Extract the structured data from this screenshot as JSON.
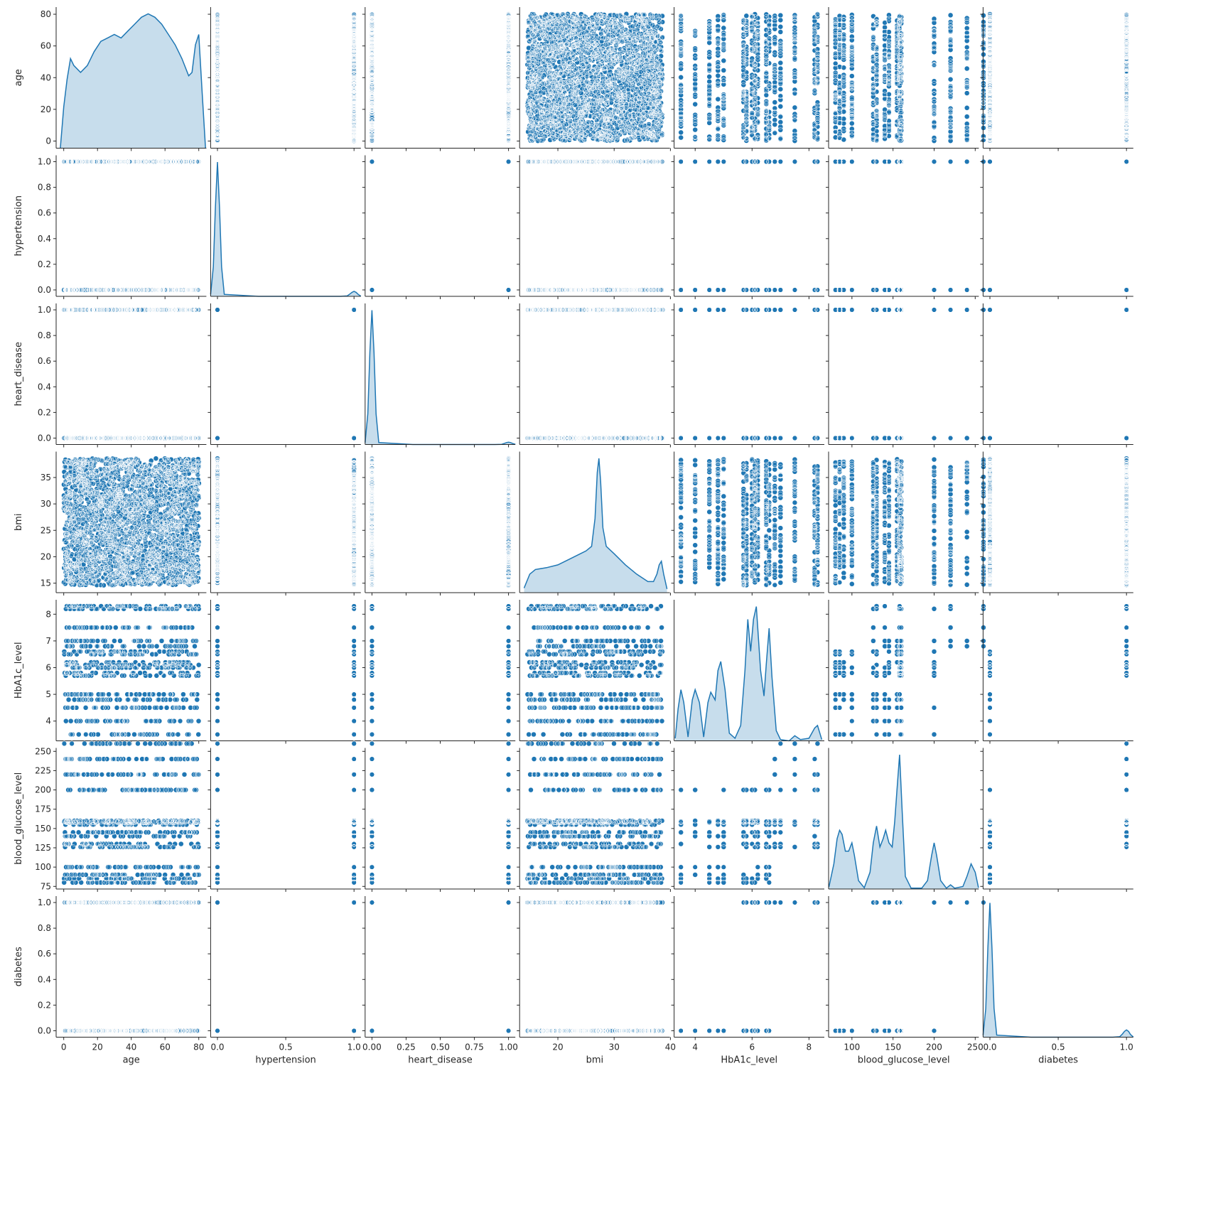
{
  "chart_data": {
    "type": "scatter",
    "subtype": "pairplot",
    "variables": [
      "age",
      "hypertension",
      "heart_disease",
      "bmi",
      "HbA1c_level",
      "blood_glucose_level",
      "diabetes"
    ],
    "axes": {
      "age": {
        "lim": [
          -4.5,
          84.5
        ],
        "ticks": [
          0,
          20,
          40,
          60,
          80
        ],
        "ticklabels": [
          "0",
          "20",
          "40",
          "60",
          "80"
        ]
      },
      "hypertension": {
        "lim": [
          -0.05,
          1.05
        ],
        "ticks": [
          0,
          0.2,
          0.4,
          0.6,
          0.8,
          1.0
        ],
        "ticklabels": [
          "0.0",
          "0.2",
          "0.4",
          "0.6",
          "0.8",
          "1.0"
        ]
      },
      "heart_disease": {
        "lim": [
          -0.05,
          1.05
        ],
        "ticks": [
          0,
          0.2,
          0.4,
          0.6,
          0.8,
          1.0
        ],
        "ticklabels": [
          "0.0",
          "0.2",
          "0.4",
          "0.6",
          "0.8",
          "1.0"
        ]
      },
      "bmi": {
        "lim": [
          13.2,
          39.9
        ],
        "ticks": [
          15,
          20,
          25,
          30,
          35
        ],
        "ticklabels": [
          "15",
          "20",
          "25",
          "30",
          "35"
        ]
      },
      "HbA1c_level": {
        "lim": [
          3.26,
          8.54
        ],
        "ticks": [
          4,
          5,
          6,
          7,
          8
        ],
        "ticklabels": [
          "4",
          "5",
          "6",
          "7",
          "8"
        ]
      },
      "blood_glucose_level": {
        "lim": [
          71.6,
          254.4
        ],
        "ticks": [
          75,
          100,
          125,
          150,
          175,
          200,
          225,
          250
        ],
        "ticklabels": [
          "75",
          "100",
          "125",
          "150",
          "175",
          "200",
          "225",
          "250"
        ]
      },
      "diabetes": {
        "lim": [
          -0.05,
          1.05
        ],
        "ticks": [
          0,
          0.2,
          0.4,
          0.6,
          0.8,
          1.0
        ],
        "ticklabels": [
          "0.0",
          "0.2",
          "0.4",
          "0.6",
          "0.8",
          "1.0"
        ]
      }
    },
    "x_axes": {
      "hypertension": {
        "ticks": [
          0,
          0.5,
          1.0
        ],
        "ticklabels": [
          "0.0",
          "0.5",
          "1.0"
        ]
      },
      "heart_disease": {
        "ticks": [
          0,
          0.25,
          0.5,
          0.75,
          1.0
        ],
        "ticklabels": [
          "0.00",
          "0.25",
          "0.50",
          "0.75",
          "1.00"
        ]
      },
      "bmi": {
        "ticks": [
          20,
          30,
          40
        ],
        "ticklabels": [
          "20",
          "30",
          "40"
        ]
      },
      "HbA1c_level": {
        "ticks": [
          4,
          6,
          8
        ],
        "ticklabels": [
          "4",
          "6",
          "8"
        ]
      },
      "blood_glucose_level": {
        "ticks": [
          100,
          150,
          200,
          250
        ],
        "ticklabels": [
          "100",
          "150",
          "200",
          "250"
        ]
      },
      "diabetes": {
        "ticks": [
          0,
          0.5,
          1.0
        ],
        "ticklabels": [
          "0.0",
          "0.5",
          "1.0"
        ]
      }
    },
    "binary_vars": [
      "hypertension",
      "heart_disease",
      "diabetes"
    ],
    "observed_levels": {
      "hypertension": [
        0,
        1
      ],
      "heart_disease": [
        0,
        1
      ],
      "diabetes": [
        0,
        1
      ],
      "HbA1c_level": [
        3.5,
        4.0,
        4.5,
        4.8,
        5.0,
        5.7,
        5.8,
        6.0,
        6.1,
        6.2,
        6.5,
        6.6,
        6.8,
        7.0,
        7.5,
        8.2,
        8.3
      ],
      "HbA1c_level_diabetic": [
        5.7,
        5.8,
        6.0,
        6.1,
        6.2,
        6.5,
        6.6,
        6.8,
        7.0,
        7.5,
        8.2,
        8.3
      ],
      "HbA1c_level_nondiabetic": [
        3.5,
        4.0,
        4.5,
        4.8,
        5.0,
        5.7,
        5.8,
        6.0,
        6.1,
        6.2,
        6.5,
        6.6
      ],
      "blood_glucose_level": [
        80,
        85,
        90,
        100,
        126,
        130,
        140,
        145,
        155,
        158,
        159,
        160,
        200,
        220,
        240,
        260
      ],
      "blood_glucose_level_diabetic": [
        126,
        130,
        140,
        145,
        155,
        158,
        159,
        160,
        200,
        220,
        240,
        260
      ],
      "blood_glucose_level_nondiabetic": [
        80,
        85,
        90,
        100,
        126,
        130,
        140,
        145,
        155,
        158,
        159,
        160,
        200
      ]
    },
    "diagonal_kde": {
      "age": {
        "x": [
          -2,
          0,
          2,
          4,
          6,
          10,
          14,
          18,
          22,
          26,
          30,
          34,
          38,
          42,
          46,
          50,
          54,
          58,
          62,
          66,
          70,
          74,
          76,
          78,
          80,
          82,
          84
        ],
        "density": [
          0.0,
          0.012,
          0.02,
          0.026,
          0.024,
          0.022,
          0.024,
          0.028,
          0.031,
          0.032,
          0.033,
          0.032,
          0.034,
          0.036,
          0.038,
          0.039,
          0.038,
          0.036,
          0.033,
          0.03,
          0.026,
          0.021,
          0.022,
          0.03,
          0.033,
          0.016,
          0.0
        ]
      },
      "hypertension": {
        "x": [
          -0.05,
          -0.03,
          -0.015,
          0.0,
          0.015,
          0.03,
          0.05,
          0.3,
          0.6,
          0.9,
          0.95,
          0.97,
          0.985,
          1.0,
          1.015,
          1.03,
          1.05
        ],
        "density": [
          0.1,
          1.5,
          4.5,
          6.8,
          4.5,
          1.5,
          0.1,
          0.0,
          0.0,
          0.0,
          0.02,
          0.12,
          0.2,
          0.25,
          0.2,
          0.1,
          0.01
        ]
      },
      "heart_disease": {
        "x": [
          -0.05,
          -0.03,
          -0.015,
          0.0,
          0.015,
          0.03,
          0.05,
          0.3,
          0.6,
          0.9,
          0.95,
          0.97,
          0.985,
          1.0,
          1.015,
          1.03,
          1.05
        ],
        "density": [
          0.1,
          1.6,
          4.8,
          7.0,
          4.8,
          1.6,
          0.1,
          0.0,
          0.0,
          0.0,
          0.01,
          0.06,
          0.1,
          0.12,
          0.1,
          0.05,
          0.01
        ]
      },
      "bmi": {
        "x": [
          14,
          15,
          16,
          18,
          20,
          22,
          24,
          25,
          26,
          26.6,
          27,
          27.3,
          27.6,
          28,
          28.6,
          30,
          32,
          34,
          36,
          37,
          37.6,
          38,
          38.4,
          38.8,
          39.4
        ],
        "density": [
          0.005,
          0.02,
          0.025,
          0.027,
          0.03,
          0.036,
          0.042,
          0.045,
          0.05,
          0.08,
          0.13,
          0.145,
          0.12,
          0.07,
          0.05,
          0.042,
          0.03,
          0.02,
          0.012,
          0.012,
          0.02,
          0.03,
          0.034,
          0.02,
          0.004
        ]
      },
      "HbA1c_level": {
        "x": [
          3.3,
          3.4,
          3.5,
          3.6,
          3.75,
          3.9,
          4.0,
          4.15,
          4.3,
          4.45,
          4.55,
          4.7,
          4.8,
          4.9,
          5.05,
          5.2,
          5.4,
          5.6,
          5.75,
          5.85,
          5.95,
          6.05,
          6.15,
          6.3,
          6.42,
          6.5,
          6.6,
          6.7,
          6.85,
          7.0,
          7.3,
          7.5,
          7.7,
          8.0,
          8.2,
          8.3,
          8.45
        ],
        "density": [
          0.02,
          0.25,
          0.4,
          0.3,
          0.03,
          0.32,
          0.4,
          0.3,
          0.03,
          0.3,
          0.38,
          0.32,
          0.55,
          0.62,
          0.4,
          0.06,
          0.02,
          0.12,
          0.55,
          0.95,
          0.7,
          0.95,
          1.05,
          0.55,
          0.35,
          0.6,
          0.88,
          0.5,
          0.08,
          0.01,
          0.0,
          0.04,
          0.01,
          0.02,
          0.1,
          0.12,
          0.01
        ]
      },
      "blood_glucose_level": {
        "x": [
          72,
          78,
          82,
          85,
          88,
          92,
          96,
          100,
          103,
          108,
          115,
          122,
          126,
          130,
          134,
          138,
          141,
          145,
          149,
          152,
          155,
          158,
          161,
          165,
          172,
          185,
          192,
          197,
          200,
          203,
          208,
          215,
          220,
          225,
          235,
          240,
          245,
          250,
          254
        ],
        "density": [
          0.0005,
          0.006,
          0.012,
          0.014,
          0.013,
          0.009,
          0.009,
          0.011,
          0.008,
          0.002,
          0.0003,
          0.004,
          0.011,
          0.015,
          0.01,
          0.012,
          0.014,
          0.011,
          0.01,
          0.016,
          0.024,
          0.032,
          0.019,
          0.003,
          0.0002,
          0.0002,
          0.002,
          0.008,
          0.011,
          0.008,
          0.002,
          0.0002,
          0.001,
          0.0002,
          0.0006,
          0.003,
          0.006,
          0.004,
          0.0003
        ]
      },
      "diabetes": {
        "x": [
          -0.05,
          -0.03,
          -0.015,
          0.0,
          0.015,
          0.03,
          0.05,
          0.3,
          0.6,
          0.9,
          0.95,
          0.97,
          0.985,
          1.0,
          1.015,
          1.03,
          1.05
        ],
        "density": [
          0.1,
          1.4,
          4.3,
          6.5,
          4.3,
          1.4,
          0.1,
          0.0,
          0.0,
          0.0,
          0.02,
          0.15,
          0.28,
          0.35,
          0.28,
          0.12,
          0.01
        ]
      }
    },
    "color": "#1f77b4",
    "fill_color": "#1f77b4",
    "fill_opacity": 0.25,
    "grid": false,
    "legend": "none"
  }
}
